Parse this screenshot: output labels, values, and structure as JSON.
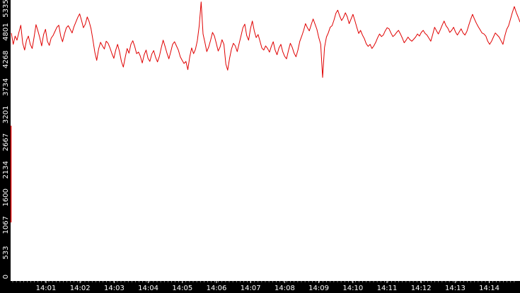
{
  "chart_data": {
    "type": "line",
    "title": "",
    "xlabel": "",
    "ylabel": "",
    "ylim": [
      0,
      5335
    ],
    "xlim": [
      "14:00:35",
      "14:14:58"
    ],
    "grid": false,
    "legend": "none",
    "colors": {
      "line": "#e00000",
      "axis_bg": "#000000",
      "axis_text": "#ffffff",
      "plot_bg": "#ffffff"
    },
    "y_ticks": [
      "0",
      "533",
      "1067",
      "1600",
      "2134",
      "2667",
      "3201",
      "3734",
      "4268",
      "4801",
      "5335"
    ],
    "x_ticks": [
      "14:01",
      "14:02",
      "14:03",
      "14:04",
      "14:05",
      "14:06",
      "14:07",
      "14:08",
      "14:09",
      "14:10",
      "14:11",
      "14:12",
      "14:13",
      "14:14"
    ],
    "series": [
      {
        "values": [
          4780,
          4560,
          4720,
          4640,
          4790,
          4930,
          4580,
          4450,
          4640,
          4720,
          4560,
          4480,
          4700,
          4940,
          4820,
          4690,
          4530,
          4750,
          4850,
          4620,
          4540,
          4680,
          4730,
          4810,
          4890,
          4930,
          4720,
          4610,
          4760,
          4880,
          4920,
          4850,
          4780,
          4900,
          4990,
          5080,
          5150,
          5020,
          4880,
          4950,
          5090,
          5000,
          4860,
          4640,
          4410,
          4250,
          4470,
          4600,
          4530,
          4470,
          4620,
          4580,
          4490,
          4380,
          4290,
          4450,
          4560,
          4420,
          4230,
          4120,
          4310,
          4480,
          4390,
          4560,
          4630,
          4520,
          4380,
          4410,
          4330,
          4200,
          4360,
          4450,
          4290,
          4230,
          4370,
          4440,
          4310,
          4220,
          4330,
          4490,
          4640,
          4520,
          4390,
          4280,
          4420,
          4560,
          4610,
          4530,
          4450,
          4320,
          4250,
          4190,
          4230,
          4070,
          4320,
          4490,
          4380,
          4460,
          4630,
          4920,
          5380,
          4760,
          4600,
          4420,
          4510,
          4640,
          4790,
          4720,
          4580,
          4430,
          4510,
          4650,
          4560,
          4180,
          4060,
          4290,
          4470,
          4580,
          4530,
          4420,
          4570,
          4720,
          4880,
          4950,
          4730,
          4640,
          4860,
          5010,
          4820,
          4690,
          4750,
          4620,
          4490,
          4450,
          4530,
          4480,
          4410,
          4520,
          4610,
          4450,
          4360,
          4490,
          4560,
          4420,
          4330,
          4280,
          4440,
          4580,
          4500,
          4390,
          4320,
          4450,
          4620,
          4720,
          4830,
          4960,
          4880,
          4820,
          4940,
          5050,
          4950,
          4850,
          4690,
          4560,
          3920,
          4500,
          4700,
          4780,
          4890,
          4920,
          5030,
          5160,
          5220,
          5110,
          5020,
          5080,
          5170,
          5090,
          4960,
          5050,
          5140,
          5020,
          4890,
          4770,
          4830,
          4740,
          4670,
          4570,
          4520,
          4560,
          4480,
          4530,
          4600,
          4690,
          4760,
          4710,
          4740,
          4820,
          4880,
          4860,
          4780,
          4710,
          4740,
          4790,
          4830,
          4760,
          4680,
          4590,
          4640,
          4700,
          4650,
          4620,
          4660,
          4700,
          4760,
          4720,
          4790,
          4830,
          4770,
          4740,
          4680,
          4620,
          4750,
          4890,
          4820,
          4760,
          4840,
          4930,
          5010,
          4920,
          4870,
          4790,
          4830,
          4890,
          4800,
          4740,
          4800,
          4860,
          4780,
          4740,
          4810,
          4930,
          5040,
          5140,
          5050,
          4970,
          4900,
          4840,
          4780,
          4760,
          4720,
          4620,
          4560,
          4620,
          4700,
          4780,
          4740,
          4700,
          4630,
          4560,
          4720,
          4850,
          4920,
          5050,
          5180,
          5290,
          5180,
          5090,
          4990
        ],
        "note": ""
      }
    ]
  }
}
